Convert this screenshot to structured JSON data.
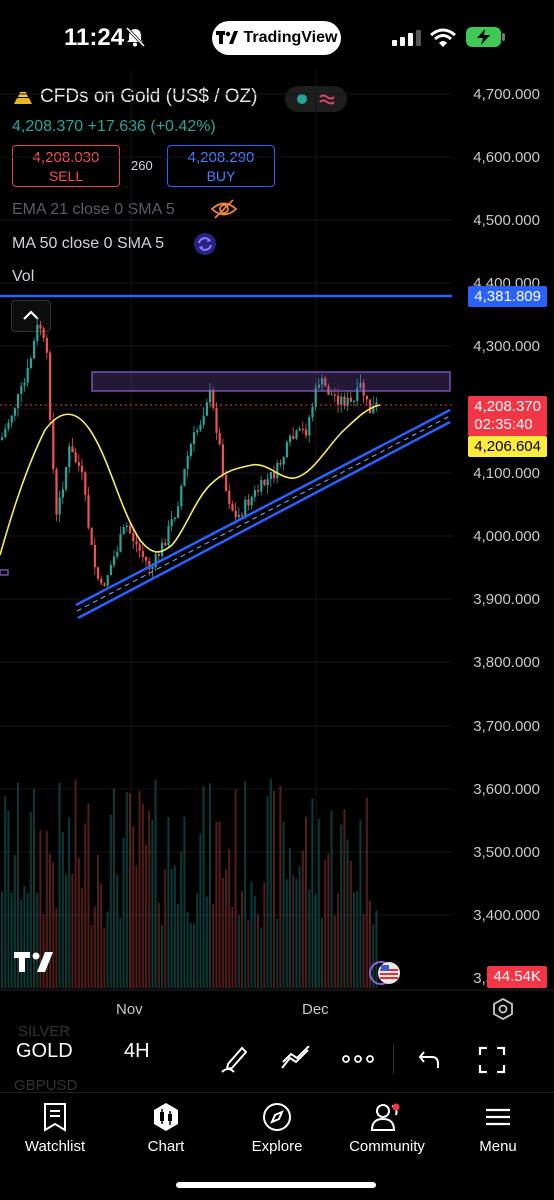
{
  "status_bar": {
    "time": "11:24",
    "app_pill": "TradingView"
  },
  "header": {
    "symbol_title": "CFDs on Gold (US$ / OZ)",
    "last_price": "4,208.370",
    "change": "+17.636",
    "change_pct": "(+0.42%)",
    "sell_price": "4,208.030",
    "sell_label": "SELL",
    "spread": "260",
    "buy_price": "4,208.290",
    "buy_label": "BUY"
  },
  "indicators": {
    "ema": "EMA 21 close 0 SMA 5",
    "ma": "MA 50 close 0 SMA 5",
    "vol": "Vol"
  },
  "price_axis": {
    "labels": [
      "4,700.000",
      "4,600.000",
      "4,500.000",
      "4,400.000",
      "4,300.000",
      "4,100.000",
      "4,000.000",
      "3,900.000",
      "3,800.000",
      "3,700.000",
      "3,600.000",
      "3,500.000",
      "3,400.000",
      "3,300.000"
    ],
    "line_tag": "4,381.809",
    "current_price": "4,208.370",
    "countdown": "02:35:40",
    "ma_tag": "4,206.604",
    "volume_tag": "44.54K"
  },
  "time_axis": {
    "labels": [
      "Nov",
      "Dec"
    ]
  },
  "toolbar": {
    "symbol": "GOLD",
    "interval": "4H",
    "watch_prev": "SILVER",
    "watch_next": "GBPUSD"
  },
  "nav": {
    "watchlist": "Watchlist",
    "chart": "Chart",
    "explore": "Explore",
    "community": "Community",
    "menu": "Menu"
  },
  "colors": {
    "up": "#26a69a",
    "down": "#ef5350",
    "accent_blue": "#2962ff",
    "ma_yellow": "#f7e96b",
    "zone_purple": "#7e57c2"
  }
}
